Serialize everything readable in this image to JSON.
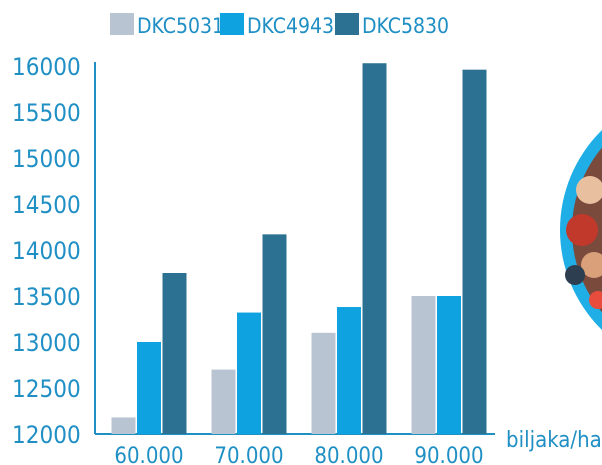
{
  "chart_data": {
    "type": "bar",
    "categories": [
      "60.000",
      "70.000",
      "80.000",
      "90.000"
    ],
    "series": [
      {
        "name": "DKC5031",
        "color": "#b9c4d2",
        "values": [
          12180,
          12700,
          13100,
          13500
        ]
      },
      {
        "name": "DKC4943",
        "color": "#0ea3e0",
        "values": [
          13000,
          13320,
          13380,
          13500
        ]
      },
      {
        "name": "DKC5830",
        "color": "#2c7192",
        "values": [
          13750,
          14170,
          16030,
          15960
        ]
      }
    ],
    "y_ticks": [
      "12000",
      "12500",
      "13000",
      "13500",
      "14000",
      "14500",
      "15000",
      "15500",
      "16000"
    ],
    "ylim": [
      12000,
      16000
    ],
    "x_unit_label": "biljaka/ha",
    "legend_position": "top",
    "grid": false,
    "text_color": "#1f8fc4"
  }
}
